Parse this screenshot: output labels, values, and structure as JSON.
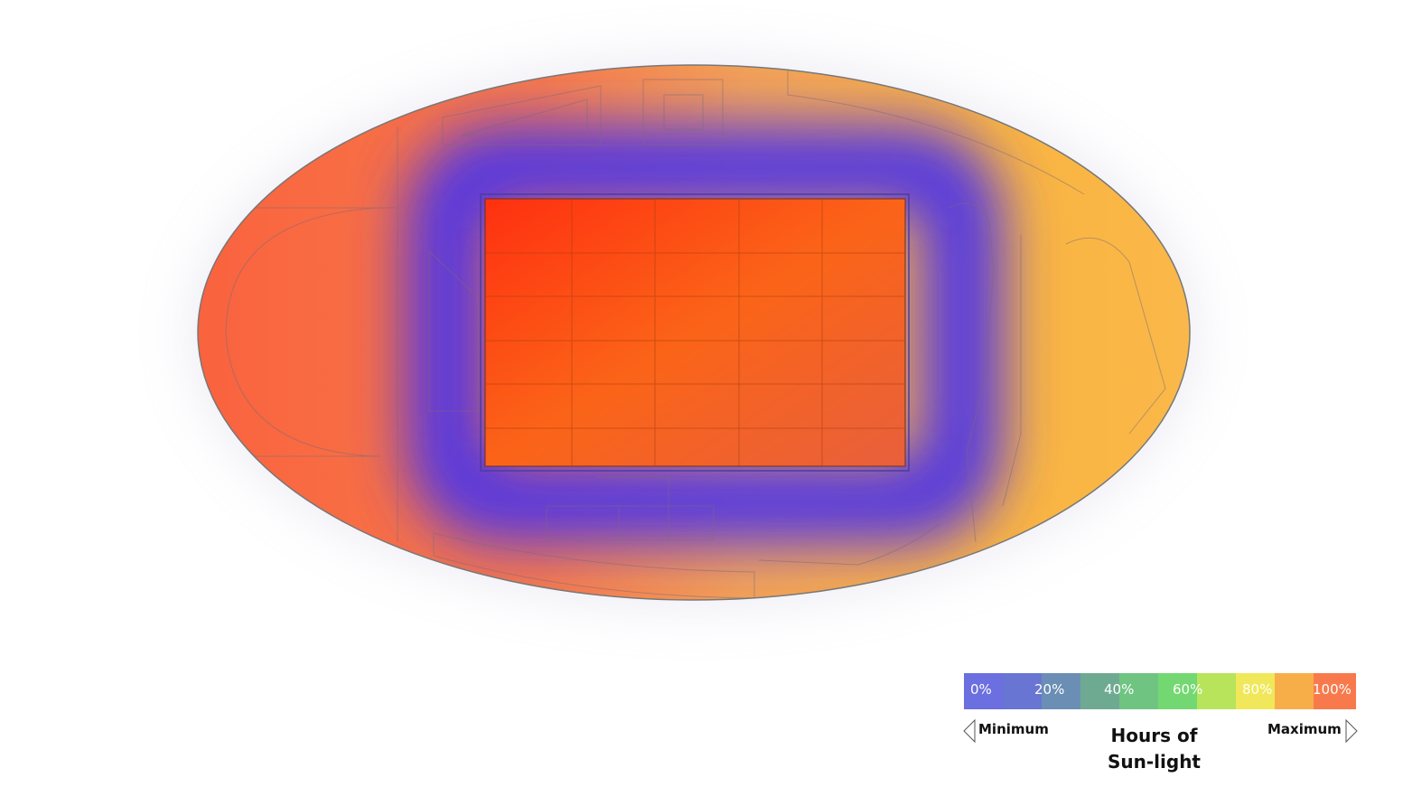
{
  "legend": {
    "labels": [
      "0%",
      "20%",
      "40%",
      "60%",
      "80%",
      "100%"
    ],
    "minimum": "Minimum",
    "maximum": "Maximum",
    "title": "Hours of Sun-light"
  }
}
